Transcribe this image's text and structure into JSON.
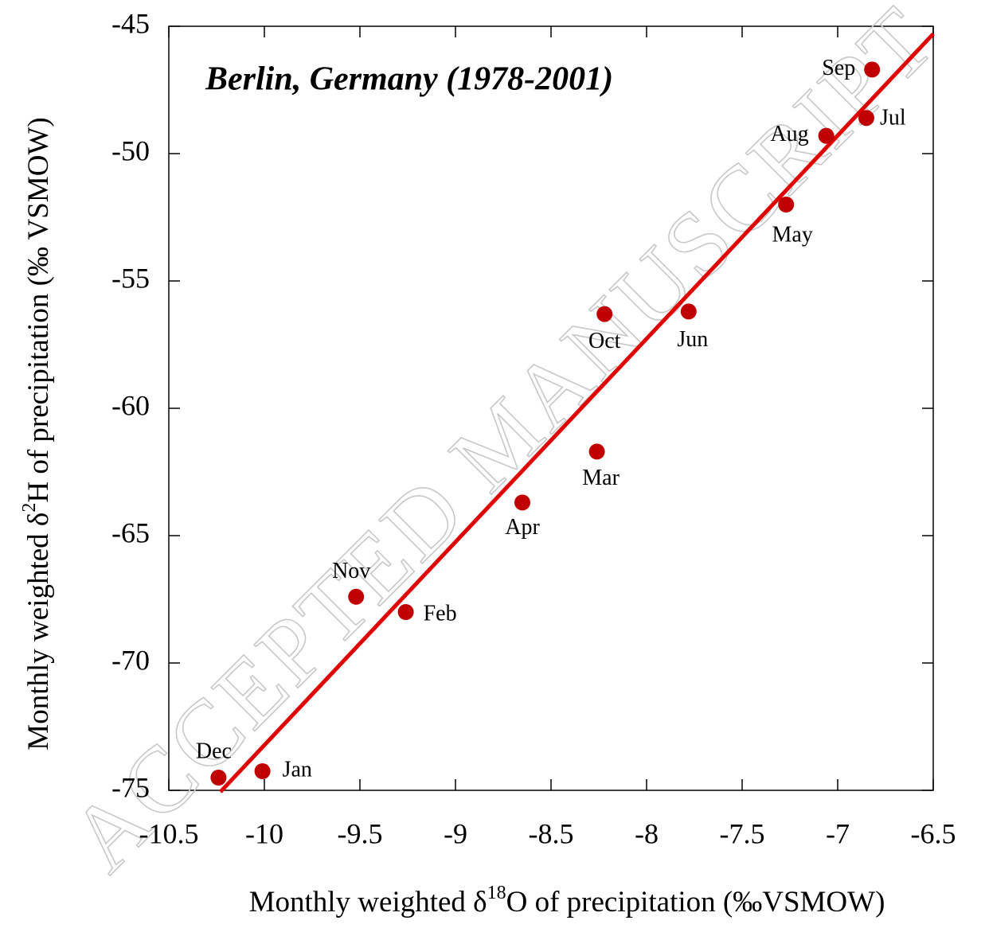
{
  "chart_data": {
    "type": "scatter",
    "title": "Berlin, Germany (1978-2001)",
    "x_label": {
      "before": "Monthly weighted δ",
      "sup": "18",
      "after": "O of precipitation (‰VSMOW)"
    },
    "y_label": {
      "before": "Monthly weighted δ",
      "sup": "2",
      "after": "H of precipitation (‰ VSMOW)"
    },
    "watermark": "ACCEPTED MANUSCRIPT",
    "labels": [
      "Jan",
      "Feb",
      "Mar",
      "Apr",
      "May",
      "Jun",
      "Jul",
      "Aug",
      "Sep",
      "Oct",
      "Nov",
      "Dec"
    ],
    "x": [
      -10.01,
      -9.26,
      -8.26,
      -8.65,
      -7.27,
      -7.78,
      -6.85,
      -7.06,
      -6.82,
      -8.22,
      -9.52,
      -10.24
    ],
    "values": [
      -74.25,
      -68.0,
      -61.7,
      -63.7,
      -52.0,
      -56.2,
      -48.6,
      -49.3,
      -46.7,
      -56.3,
      -67.4,
      -74.5
    ],
    "color": "#c00000",
    "fit_line": {
      "x": [
        -10.23,
        -6.5
      ],
      "y": [
        -75.06,
        -45.3
      ],
      "color": "#e00000"
    },
    "xlim": [
      -10.5,
      -6.5
    ],
    "ylim": [
      -75,
      -45
    ],
    "xticks": [
      -10.5,
      -10,
      -9.5,
      -9,
      -8.5,
      -8,
      -7.5,
      -7,
      -6.5
    ],
    "yticks": [
      -75,
      -70,
      -65,
      -60,
      -55,
      -50,
      -45
    ],
    "grid": false
  }
}
